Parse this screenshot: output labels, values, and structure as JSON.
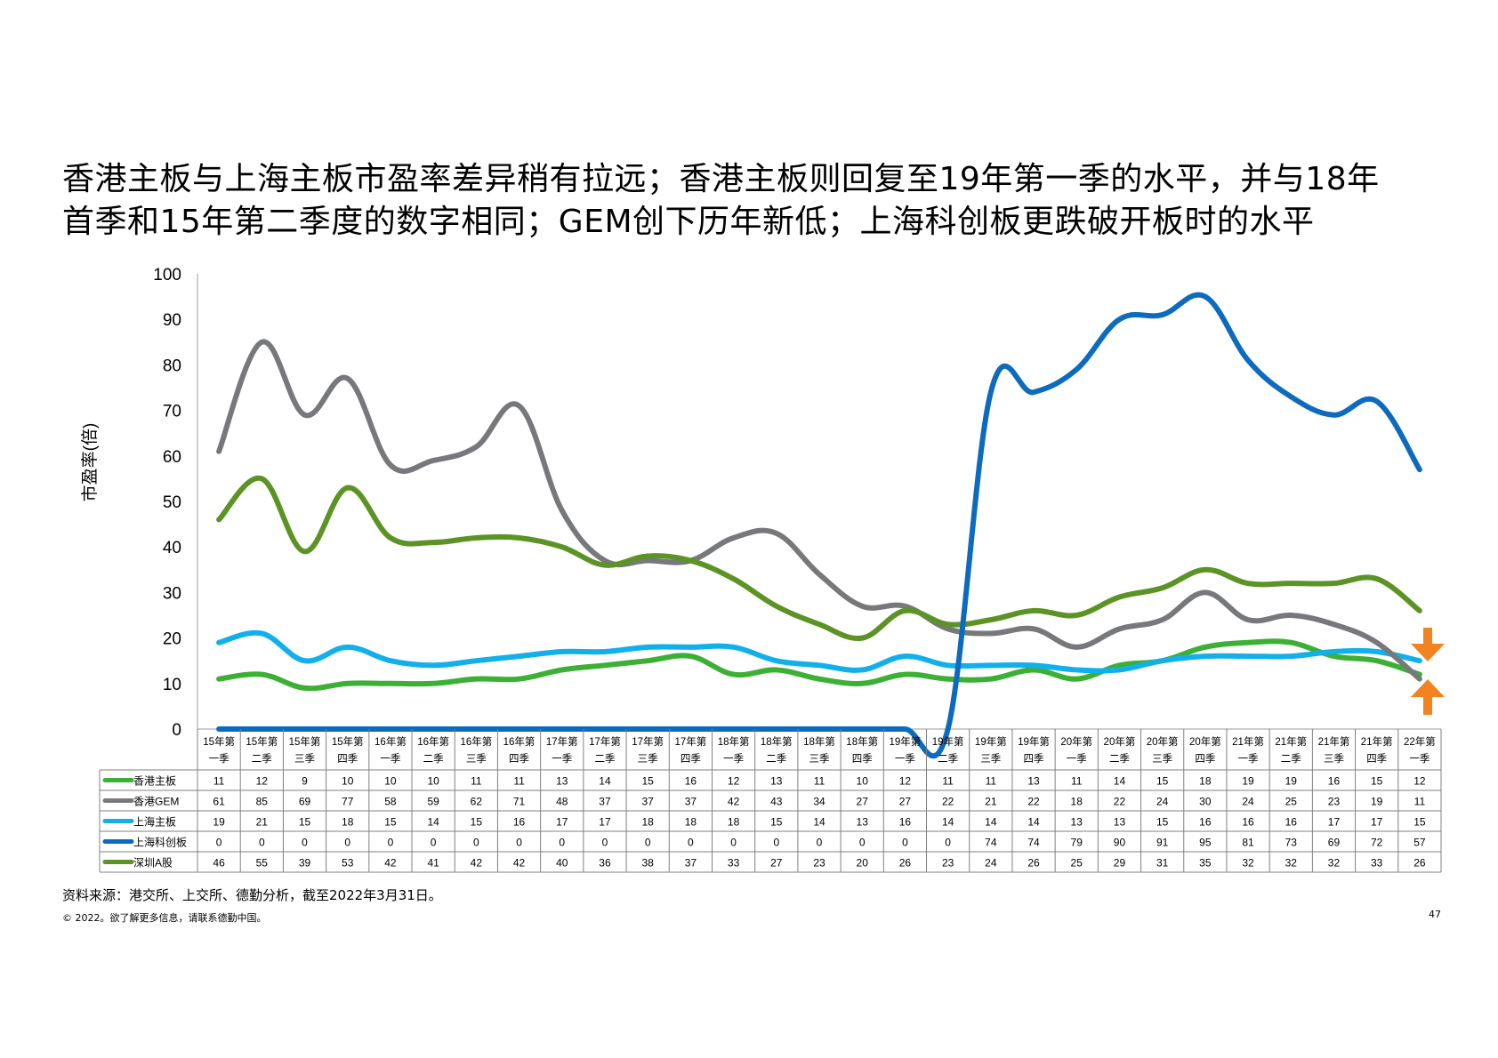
{
  "slide": {
    "title_lines": [
      "香港主板与上海主板市盈率差异稍有拉远；香港主板则回复至19年第一季的水平，并与18年",
      "首季和15年第二季度的数字相同；GEM创下历年新低；上海科创板更跌破开板时的水平"
    ],
    "source": "资料来源：港交所、上交所、德勤分析，截至2022年3月31日。",
    "copyright": "© 2022。欲了解更多信息，请联系德勤中国。",
    "page_number": "47"
  },
  "chart_data": {
    "type": "line",
    "ylabel": "市盈率(倍)",
    "ylim": [
      0,
      100
    ],
    "yticks": [
      "0",
      "10",
      "20",
      "30",
      "40",
      "50",
      "60",
      "70",
      "80",
      "90",
      "100"
    ],
    "categories": [
      [
        "15年第",
        "一季"
      ],
      [
        "15年第",
        "二季"
      ],
      [
        "15年第",
        "三季"
      ],
      [
        "15年第",
        "四季"
      ],
      [
        "16年第",
        "一季"
      ],
      [
        "16年第",
        "二季"
      ],
      [
        "16年第",
        "三季"
      ],
      [
        "16年第",
        "四季"
      ],
      [
        "17年第",
        "一季"
      ],
      [
        "17年第",
        "二季"
      ],
      [
        "17年第",
        "三季"
      ],
      [
        "17年第",
        "四季"
      ],
      [
        "18年第",
        "一季"
      ],
      [
        "18年第",
        "二季"
      ],
      [
        "18年第",
        "三季"
      ],
      [
        "18年第",
        "四季"
      ],
      [
        "19年第",
        "一季"
      ],
      [
        "19年第",
        "二季"
      ],
      [
        "19年第",
        "三季"
      ],
      [
        "19年第",
        "四季"
      ],
      [
        "20年第",
        "一季"
      ],
      [
        "20年第",
        "二季"
      ],
      [
        "20年第",
        "三季"
      ],
      [
        "20年第",
        "四季"
      ],
      [
        "21年第",
        "一季"
      ],
      [
        "21年第",
        "二季"
      ],
      [
        "21年第",
        "三季"
      ],
      [
        "21年第",
        "四季"
      ],
      [
        "22年第",
        "一季"
      ]
    ],
    "series": [
      {
        "name": "香港主板",
        "color": "#3cb034",
        "values": [
          11,
          12,
          9,
          10,
          10,
          10,
          11,
          11,
          13,
          14,
          15,
          16,
          12,
          13,
          11,
          10,
          12,
          11,
          11,
          13,
          11,
          14,
          15,
          18,
          19,
          19,
          16,
          15,
          12
        ]
      },
      {
        "name": "香港GEM",
        "color": "#76787b",
        "values": [
          61,
          85,
          69,
          77,
          58,
          59,
          62,
          71,
          48,
          37,
          37,
          37,
          42,
          43,
          34,
          27,
          27,
          22,
          21,
          22,
          18,
          22,
          24,
          30,
          24,
          25,
          23,
          19,
          11
        ]
      },
      {
        "name": "上海主板",
        "color": "#12b0ea",
        "values": [
          19,
          21,
          15,
          18,
          15,
          14,
          15,
          16,
          17,
          17,
          18,
          18,
          18,
          15,
          14,
          13,
          16,
          14,
          14,
          14,
          13,
          13,
          15,
          16,
          16,
          16,
          17,
          17,
          15
        ]
      },
      {
        "name": "上海科创板",
        "color": "#0c6bbf",
        "values": [
          0,
          0,
          0,
          0,
          0,
          0,
          0,
          0,
          0,
          0,
          0,
          0,
          0,
          0,
          0,
          0,
          0,
          0,
          74,
          74,
          79,
          90,
          91,
          95,
          81,
          73,
          69,
          72,
          57
        ]
      },
      {
        "name": "深圳A股",
        "color": "#5b9424",
        "values": [
          46,
          55,
          39,
          53,
          42,
          41,
          42,
          42,
          40,
          36,
          38,
          37,
          33,
          27,
          23,
          20,
          26,
          23,
          24,
          26,
          25,
          29,
          31,
          35,
          32,
          32,
          32,
          33,
          26
        ]
      }
    ],
    "annotations": {
      "arrow_color": "#f2831f",
      "arrows": [
        "arrow-down",
        "arrow-up"
      ]
    },
    "grid": false,
    "legend": "data-table"
  }
}
